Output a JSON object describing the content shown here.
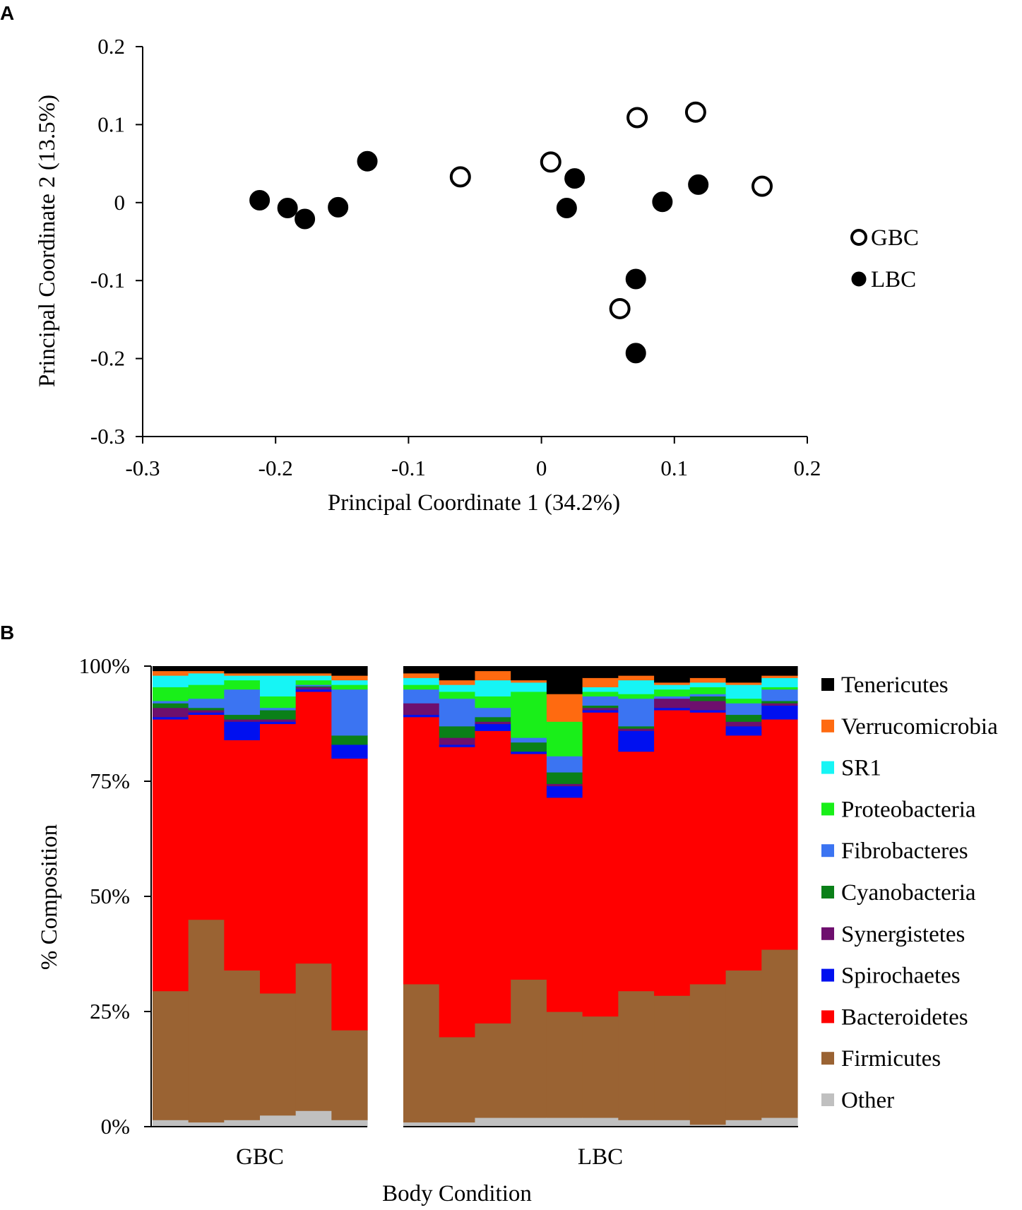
{
  "panel_a_label": "A",
  "panel_b_label": "B",
  "chart_data": [
    {
      "type": "scatter",
      "xlabel": "Principal Coordinate 1 (34.2%)",
      "ylabel": "Principal Coordinate 2 (13.5%)",
      "xlim": [
        -0.3,
        0.2
      ],
      "ylim": [
        -0.3,
        0.2
      ],
      "xticks": [
        -0.3,
        -0.2,
        -0.1,
        0,
        0.1,
        0.2
      ],
      "yticks": [
        -0.3,
        -0.2,
        -0.1,
        0,
        0.1,
        0.2
      ],
      "xtick_labels": [
        "-0.3",
        "-0.2",
        "-0.1",
        "0",
        "0.1",
        "0.2"
      ],
      "ytick_labels": [
        "-0.3",
        "-0.2",
        "-0.1",
        "0",
        "0.1",
        "0.2"
      ],
      "legend_position": "right",
      "series": [
        {
          "name": "GBC",
          "marker": "open-circle",
          "color": "#000000",
          "points": [
            [
              -0.061,
              0.033
            ],
            [
              0.007,
              0.052
            ],
            [
              0.072,
              0.109
            ],
            [
              0.116,
              0.116
            ],
            [
              0.166,
              0.021
            ],
            [
              0.059,
              -0.136
            ]
          ]
        },
        {
          "name": "LBC",
          "marker": "filled-circle",
          "color": "#000000",
          "points": [
            [
              -0.212,
              0.003
            ],
            [
              -0.191,
              -0.007
            ],
            [
              -0.178,
              -0.021
            ],
            [
              -0.153,
              -0.006
            ],
            [
              -0.131,
              0.053
            ],
            [
              0.025,
              0.031
            ],
            [
              0.019,
              -0.007
            ],
            [
              0.091,
              0.001
            ],
            [
              0.118,
              0.023
            ],
            [
              0.071,
              -0.098
            ],
            [
              0.071,
              -0.193
            ]
          ]
        }
      ]
    },
    {
      "type": "bar",
      "stacked": true,
      "xlabel": "Body Condition",
      "ylabel": "% Composition",
      "ylim": [
        0,
        100
      ],
      "yticks": [
        0,
        25,
        50,
        75,
        100
      ],
      "ytick_labels": [
        "0%",
        "25%",
        "50%",
        "75%",
        "100%"
      ],
      "groups": [
        {
          "name": "GBC",
          "samples": 6
        },
        {
          "name": "LBC",
          "samples": 11
        }
      ],
      "legend_position": "right",
      "phyla": [
        {
          "name": "Other",
          "color": "#c0c0c0"
        },
        {
          "name": "Firmicutes",
          "color": "#9a6333"
        },
        {
          "name": "Bacteroidetes",
          "color": "#ff0000"
        },
        {
          "name": "Spirochaetes",
          "color": "#0010f0"
        },
        {
          "name": "Synergistetes",
          "color": "#6e0f6e"
        },
        {
          "name": "Cyanobacteria",
          "color": "#0a8018"
        },
        {
          "name": "Fibrobacteres",
          "color": "#3b74f2"
        },
        {
          "name": "Proteobacteria",
          "color": "#19ef19"
        },
        {
          "name": "SR1",
          "color": "#16f5f5"
        },
        {
          "name": "Verrucomicrobia",
          "color": "#ff6a10"
        },
        {
          "name": "Tenericutes",
          "color": "#000000"
        }
      ],
      "legend_order": [
        "Tenericutes",
        "Verrucomicrobia",
        "SR1",
        "Proteobacteria",
        "Fibrobacteres",
        "Cyanobacteria",
        "Synergistetes",
        "Spirochaetes",
        "Bacteroidetes",
        "Firmicutes",
        "Other"
      ],
      "samples": [
        {
          "group": "GBC",
          "values": [
            1.5,
            28.0,
            59.0,
            0.5,
            2.0,
            1.0,
            0.5,
            3.0,
            2.5,
            1.0,
            1.0
          ]
        },
        {
          "group": "GBC",
          "values": [
            1.0,
            44.0,
            44.5,
            0.5,
            0.5,
            0.5,
            2.0,
            3.0,
            2.5,
            0.5,
            1.0
          ]
        },
        {
          "group": "GBC",
          "values": [
            1.5,
            32.5,
            50.0,
            4.0,
            0.5,
            1.0,
            5.5,
            2.0,
            1.0,
            0.5,
            1.5
          ]
        },
        {
          "group": "GBC",
          "values": [
            2.5,
            26.5,
            58.5,
            0.5,
            0.5,
            2.0,
            0.5,
            2.5,
            4.5,
            0.5,
            1.5
          ]
        },
        {
          "group": "GBC",
          "values": [
            3.5,
            32.0,
            59.0,
            0.5,
            0.5,
            0.2,
            0.3,
            1.0,
            1.0,
            0.5,
            1.5
          ]
        },
        {
          "group": "GBC",
          "values": [
            1.5,
            19.5,
            59.0,
            3.0,
            0.0,
            2.0,
            10.0,
            1.0,
            1.0,
            1.0,
            2.0
          ]
        },
        {
          "group": "LBC",
          "values": [
            1.0,
            30.0,
            58.0,
            0.5,
            2.5,
            0.0,
            3.0,
            1.0,
            1.5,
            1.0,
            1.5
          ]
        },
        {
          "group": "LBC",
          "values": [
            1.0,
            18.5,
            63.0,
            0.5,
            1.5,
            2.5,
            6.0,
            1.5,
            1.5,
            1.0,
            3.0
          ]
        },
        {
          "group": "LBC",
          "values": [
            2.0,
            20.5,
            63.5,
            1.5,
            0.5,
            1.0,
            2.0,
            2.5,
            3.5,
            2.0,
            1.0
          ]
        },
        {
          "group": "LBC",
          "values": [
            2.0,
            30.0,
            49.0,
            0.5,
            0.0,
            2.0,
            1.0,
            10.0,
            2.0,
            0.5,
            3.0
          ]
        },
        {
          "group": "LBC",
          "values": [
            2.0,
            23.0,
            46.5,
            2.5,
            0.5,
            2.5,
            3.5,
            7.5,
            0.0,
            6.0,
            6.0
          ]
        },
        {
          "group": "LBC",
          "values": [
            2.0,
            22.0,
            66.0,
            0.5,
            0.5,
            0.5,
            2.0,
            1.0,
            1.0,
            2.0,
            2.5
          ]
        },
        {
          "group": "LBC",
          "values": [
            1.5,
            28.0,
            52.0,
            4.5,
            0.5,
            0.5,
            6.0,
            1.0,
            3.0,
            1.0,
            2.0
          ]
        },
        {
          "group": "LBC",
          "values": [
            1.5,
            27.0,
            62.0,
            0.5,
            2.0,
            0.0,
            0.5,
            1.5,
            1.0,
            0.5,
            3.5
          ]
        },
        {
          "group": "LBC",
          "values": [
            0.5,
            30.5,
            59.0,
            0.5,
            2.0,
            1.0,
            0.5,
            1.5,
            1.0,
            1.0,
            2.5
          ]
        },
        {
          "group": "LBC",
          "values": [
            1.5,
            32.5,
            51.0,
            2.0,
            1.0,
            1.5,
            2.5,
            1.0,
            3.0,
            0.5,
            3.5
          ]
        },
        {
          "group": "LBC",
          "values": [
            2.0,
            36.5,
            50.0,
            3.0,
            0.5,
            0.5,
            2.5,
            0.5,
            2.0,
            0.5,
            2.0
          ]
        }
      ]
    }
  ]
}
